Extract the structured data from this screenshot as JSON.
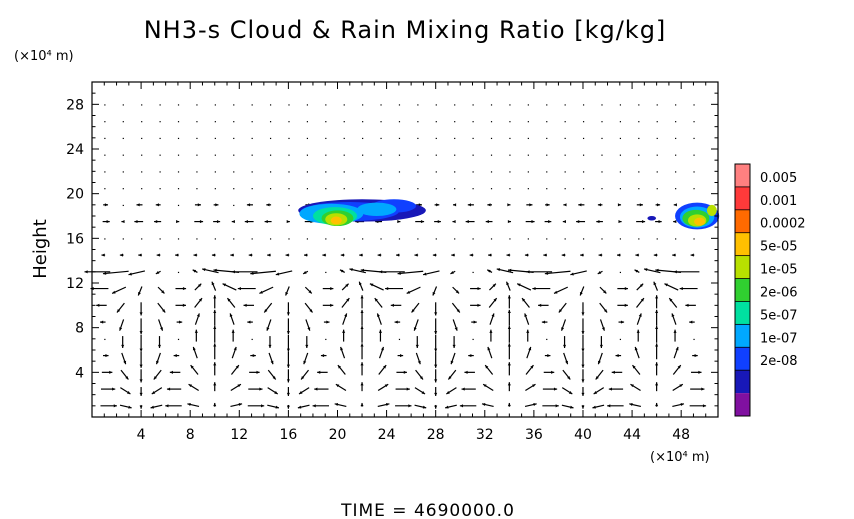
{
  "chart_data": {
    "type": "heatmap",
    "title": "NH3-s Cloud & Rain Mixing Ratio [kg/kg]",
    "ylabel": "Height",
    "x_unit": "(×10⁴ m)",
    "y_unit": "(×10⁴ m)",
    "footer": "TIME  =  4690000.0",
    "xlim": [
      0,
      51
    ],
    "ylim": [
      0,
      30
    ],
    "x_ticks": [
      4,
      8,
      12,
      16,
      20,
      24,
      28,
      32,
      36,
      40,
      44,
      48
    ],
    "y_ticks": [
      4,
      8,
      12,
      16,
      20,
      24,
      28
    ],
    "colorbar": {
      "levels": [
        "0.005",
        "0.001",
        "0.0002",
        "5e-05",
        "1e-05",
        "2e-06",
        "5e-07",
        "1e-07",
        "2e-08"
      ],
      "colors": [
        "#ff8080",
        "#ff3a3a",
        "#ff6a00",
        "#ffc000",
        "#b8e000",
        "#30d030",
        "#00e0a0",
        "#00a8ff",
        "#1040ff",
        "#1818b8",
        "#8010a0"
      ]
    },
    "cloud_regions": [
      {
        "x": [
          16.5,
          27
        ],
        "y": [
          17,
          19.6
        ],
        "max_level": "5e-05"
      },
      {
        "x": [
          47,
          51
        ],
        "y": [
          16.8,
          19.6
        ],
        "max_level": "0.0002"
      }
    ],
    "wind_vectors": "arrow field (u, w) over the domain"
  }
}
